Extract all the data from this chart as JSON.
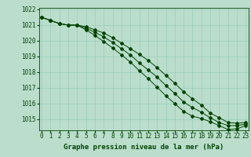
{
  "line1": [
    1021.5,
    1021.3,
    1021.1,
    1021.0,
    1021.0,
    1020.9,
    1020.7,
    1020.5,
    1020.2,
    1019.85,
    1019.5,
    1019.15,
    1018.75,
    1018.3,
    1017.8,
    1017.3,
    1016.75,
    1016.3,
    1015.9,
    1015.4,
    1015.1,
    1014.8,
    1014.75,
    1014.8
  ],
  "line2": [
    1021.5,
    1021.3,
    1021.1,
    1021.0,
    1021.0,
    1020.7,
    1020.35,
    1019.95,
    1019.55,
    1019.1,
    1018.65,
    1018.1,
    1017.6,
    1017.05,
    1016.5,
    1016.0,
    1015.5,
    1015.2,
    1015.05,
    1014.85,
    1014.6,
    1014.35,
    1014.4,
    1014.6
  ],
  "line3": [
    1021.5,
    1021.3,
    1021.1,
    1021.0,
    1021.0,
    1020.8,
    1020.55,
    1020.25,
    1019.9,
    1019.5,
    1019.1,
    1018.6,
    1018.15,
    1017.7,
    1017.15,
    1016.65,
    1016.1,
    1015.75,
    1015.45,
    1015.1,
    1014.8,
    1014.6,
    1014.6,
    1014.7
  ],
  "x": [
    0,
    1,
    2,
    3,
    4,
    5,
    6,
    7,
    8,
    9,
    10,
    11,
    12,
    13,
    14,
    15,
    16,
    17,
    18,
    19,
    20,
    21,
    22,
    23
  ],
  "ylim": [
    1014.3,
    1022.1
  ],
  "yticks": [
    1015,
    1016,
    1017,
    1018,
    1019,
    1020,
    1021,
    1022
  ],
  "xticks": [
    0,
    1,
    2,
    3,
    4,
    5,
    6,
    7,
    8,
    9,
    10,
    11,
    12,
    13,
    14,
    15,
    16,
    17,
    18,
    19,
    20,
    21,
    22,
    23
  ],
  "line_color": "#004400",
  "marker_color": "#004400",
  "bg_color": "#bbddcc",
  "grid_color": "#99ccbb",
  "xlabel": "Graphe pression niveau de la mer (hPa)",
  "xlabel_fontsize": 6.5,
  "tick_fontsize": 5.5
}
